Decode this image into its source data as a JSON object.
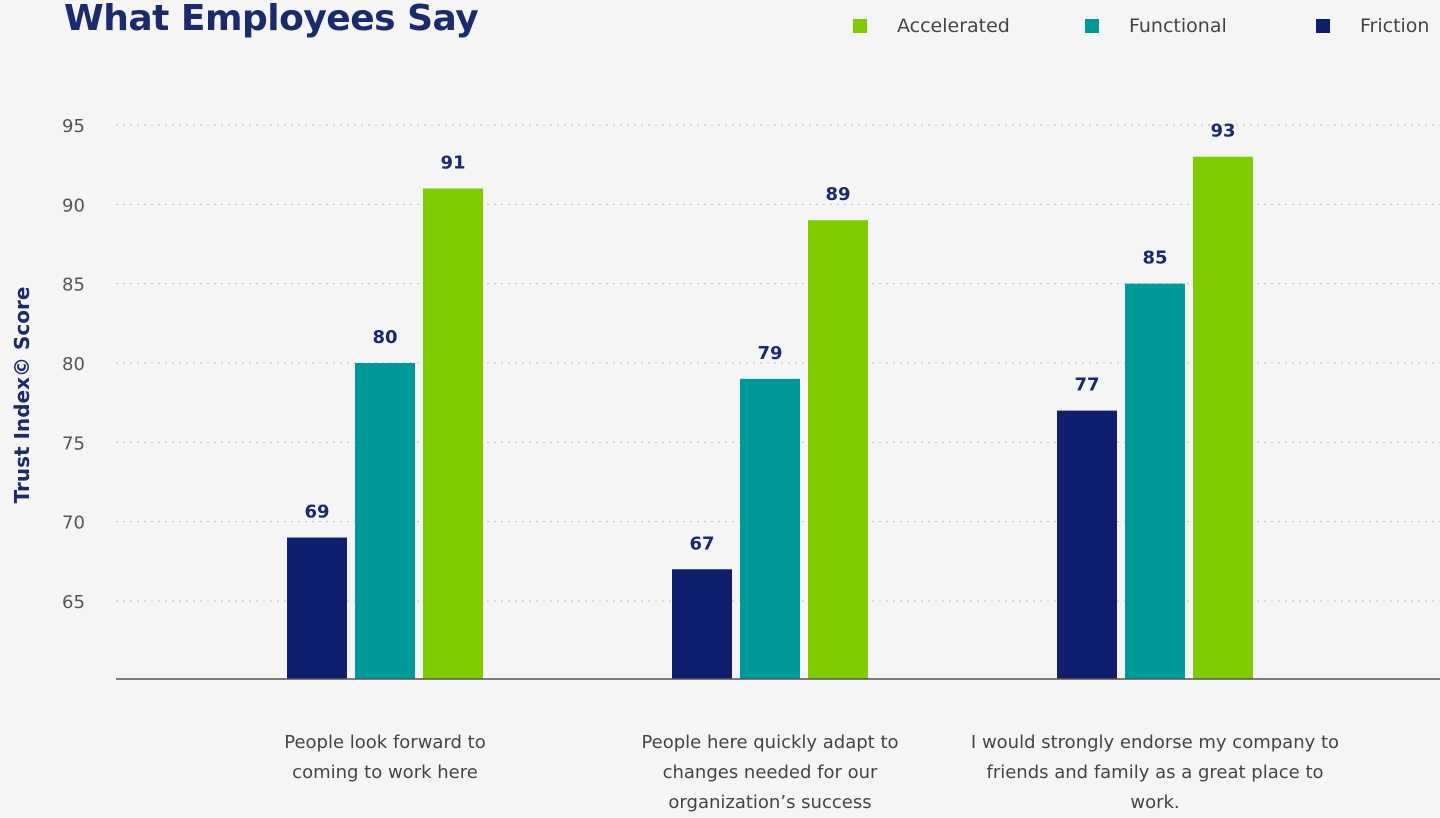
{
  "chart_data": {
    "type": "bar",
    "title": "What Employees Say",
    "ylabel": "Trust Index© Score",
    "ylim": [
      60,
      95
    ],
    "yticks": [
      65,
      70,
      75,
      80,
      85,
      90,
      95
    ],
    "grid": true,
    "legend_position": "top-right",
    "categories": [
      "People look forward to coming to work here",
      "People here quickly adapt to changes needed for our organization’s success",
      "I would strongly endorse my company to friends and family as a great place to work."
    ],
    "series": [
      {
        "name": "Friction",
        "color": "#0f1f6e",
        "values": [
          69,
          67,
          77
        ]
      },
      {
        "name": "Functional",
        "color": "#009999",
        "values": [
          80,
          79,
          85
        ]
      },
      {
        "name": "Accelerated",
        "color": "#7fcc00",
        "values": [
          91,
          89,
          93
        ]
      }
    ],
    "legend_order": [
      "Accelerated",
      "Functional",
      "Friction"
    ]
  }
}
